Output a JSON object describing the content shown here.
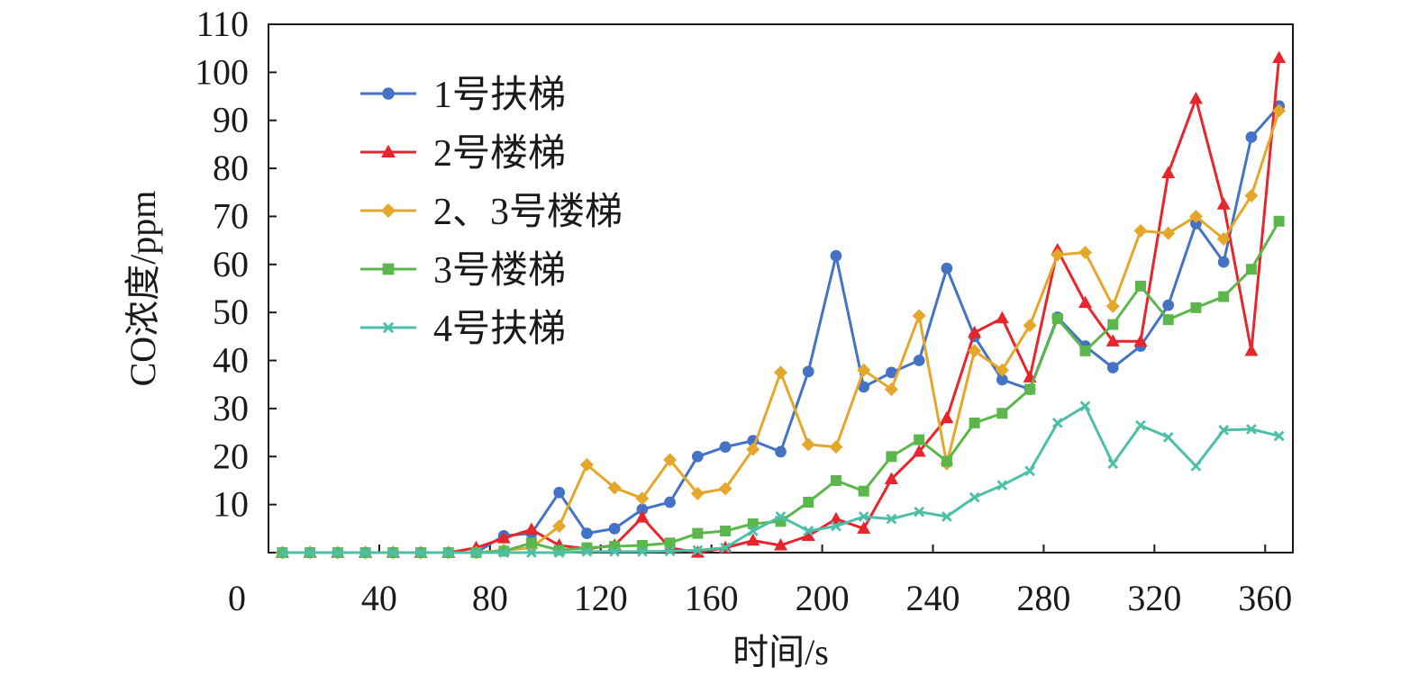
{
  "chart_data": {
    "type": "line",
    "xlabel": "时间/s",
    "ylabel": "CO浓度/ppm",
    "xlim": [
      0,
      370
    ],
    "ylim": [
      0,
      110
    ],
    "x_ticks": [
      0,
      40,
      80,
      120,
      160,
      200,
      240,
      280,
      320,
      360
    ],
    "y_ticks": [
      10,
      20,
      30,
      40,
      50,
      60,
      70,
      80,
      90,
      100,
      110
    ],
    "legend_position": "top-left",
    "grid": false,
    "x": [
      5,
      15,
      25,
      35,
      45,
      55,
      65,
      75,
      85,
      95,
      105,
      115,
      125,
      135,
      145,
      155,
      165,
      175,
      185,
      195,
      205,
      215,
      225,
      235,
      245,
      255,
      265,
      275,
      285,
      295,
      305,
      315,
      325,
      335,
      345,
      355,
      365
    ],
    "series": [
      {
        "name": "1号扶梯",
        "color": "#4472c4",
        "marker": "circle",
        "values": [
          0,
          0,
          0,
          0,
          0,
          0,
          0,
          0,
          3.5,
          4,
          12.5,
          4,
          5,
          9,
          10.5,
          20,
          22,
          23.3,
          21,
          37.7,
          61.8,
          34.5,
          37.5,
          40,
          59.2,
          45,
          36,
          34,
          49,
          43,
          38.5,
          43,
          51.5,
          68.5,
          60.5,
          86.5,
          93
        ]
      },
      {
        "name": "2号楼梯",
        "color": "#e8242c",
        "marker": "triangle",
        "values": [
          0,
          0,
          0,
          0,
          0,
          0,
          0,
          1,
          3,
          4.8,
          1.5,
          0.8,
          1.5,
          7.3,
          1,
          0,
          1,
          2.5,
          1.5,
          3.5,
          7,
          5,
          15.3,
          21,
          28,
          45.8,
          48.8,
          36.5,
          63,
          52,
          44,
          44,
          79,
          94.5,
          72.5,
          42,
          103
        ]
      },
      {
        "name": "2、3号楼梯",
        "color": "#e4a72b",
        "marker": "diamond",
        "values": [
          0,
          0,
          0,
          0,
          0,
          0,
          0,
          0,
          0.5,
          1,
          5.5,
          18.3,
          13.5,
          11.3,
          19.3,
          12.3,
          13.3,
          21.5,
          37.5,
          22.5,
          22,
          38,
          34,
          49.3,
          18.5,
          42,
          38,
          47.3,
          62,
          62.5,
          51.3,
          67,
          66.5,
          70,
          65.3,
          74.3,
          92
        ]
      },
      {
        "name": "3号楼梯",
        "color": "#5bb74c",
        "marker": "square",
        "values": [
          0,
          0,
          0,
          0,
          0,
          0,
          0,
          0,
          0.3,
          2,
          0.5,
          1,
          1.3,
          1.5,
          2,
          4,
          4.5,
          6,
          6.5,
          10.5,
          15,
          12.8,
          20,
          23.5,
          19,
          27,
          29,
          34,
          48.7,
          42,
          47.5,
          55.5,
          48.5,
          51,
          53.3,
          59,
          69
        ]
      },
      {
        "name": "4号扶梯",
        "color": "#4dbfa8",
        "marker": "x",
        "values": [
          0,
          0,
          0,
          0,
          0,
          0,
          0,
          0,
          0,
          0,
          0,
          0.2,
          0.2,
          0.2,
          0.3,
          0.5,
          1,
          4.5,
          7.5,
          4.5,
          5.5,
          7.5,
          7,
          8.5,
          7.5,
          11.5,
          14,
          17,
          27,
          30.5,
          18.5,
          26.5,
          24,
          18,
          25.5,
          25.7,
          24.3
        ]
      }
    ]
  }
}
